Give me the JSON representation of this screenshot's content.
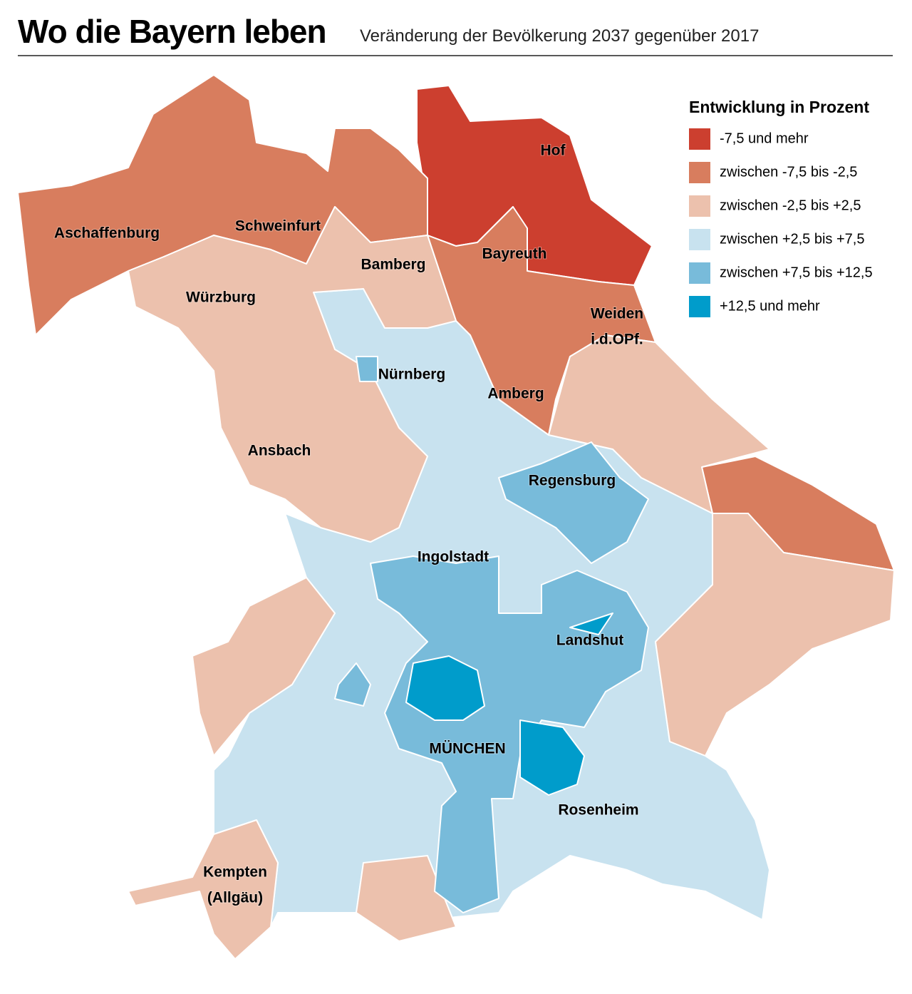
{
  "header": {
    "title": "Wo die Bayern leben",
    "subtitle": "Veränderung der Bevölkerung 2037 gegenüber 2017"
  },
  "legend": {
    "title": "Entwicklung in Prozent",
    "items": [
      {
        "label": "-7,5 und mehr",
        "color": "#cc3f2f"
      },
      {
        "label": "zwischen -7,5 bis -2,5",
        "color": "#d87d5e"
      },
      {
        "label": "zwischen -2,5 bis +2,5",
        "color": "#ecc1ad"
      },
      {
        "label": "zwischen +2,5 bis +7,5",
        "color": "#c8e2ef"
      },
      {
        "label": "zwischen +7,5 bis +12,5",
        "color": "#78bbda"
      },
      {
        "label": "+12,5 und mehr",
        "color": "#009ccb"
      }
    ]
  },
  "labels": [
    {
      "lines": [
        "Aschaffenburg"
      ]
    },
    {
      "lines": [
        "Schweinfurt"
      ]
    },
    {
      "lines": [
        "Bamberg"
      ]
    },
    {
      "lines": [
        "Bayreuth"
      ]
    },
    {
      "lines": [
        "Würzburg"
      ]
    },
    {
      "lines": [
        "Hof"
      ]
    },
    {
      "lines": [
        "Weiden",
        "i.d.OPf."
      ]
    },
    {
      "lines": [
        "Nürnberg"
      ]
    },
    {
      "lines": [
        "Amberg"
      ]
    },
    {
      "lines": [
        "Ansbach"
      ]
    },
    {
      "lines": [
        "Regensburg"
      ]
    },
    {
      "lines": [
        "Ingolstadt"
      ]
    },
    {
      "lines": [
        "Landshut"
      ]
    },
    {
      "lines": [
        "MÜNCHEN"
      ]
    },
    {
      "lines": [
        "Rosenheim"
      ]
    },
    {
      "lines": [
        "Kempten",
        "(Allgäu)"
      ]
    }
  ]
}
